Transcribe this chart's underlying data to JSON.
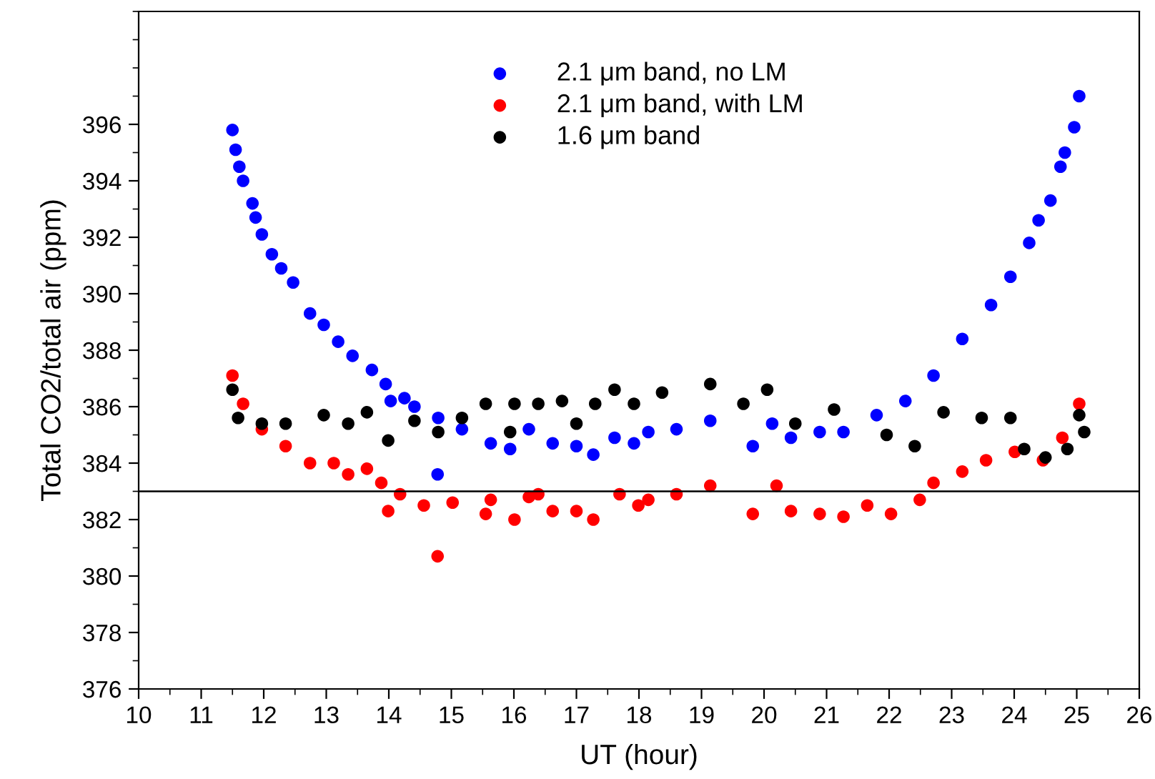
{
  "chart_data": {
    "type": "scatter",
    "xlabel": "UT (hour)",
    "ylabel": "Total CO2/total air (ppm)",
    "xlim": [
      10,
      26
    ],
    "xticks": [
      10,
      11,
      12,
      13,
      14,
      15,
      16,
      17,
      18,
      19,
      20,
      21,
      22,
      23,
      24,
      25,
      26
    ],
    "ylim": [
      376,
      400
    ],
    "yticks": [
      376,
      378,
      380,
      382,
      384,
      386,
      388,
      390,
      392,
      394,
      396
    ],
    "legend": "top",
    "marker": "circle",
    "grid": false,
    "ref_lines": [
      {
        "axis": "y",
        "value": 383,
        "color": "#000000"
      }
    ],
    "series": [
      {
        "name": "2.1 μm band, no LM",
        "color": "#0000ff",
        "x": [
          11.5,
          11.55,
          11.61,
          11.67,
          11.82,
          11.87,
          11.97,
          12.13,
          12.28,
          12.47,
          12.74,
          12.96,
          13.19,
          13.42,
          13.73,
          13.95,
          14.03,
          14.25,
          14.41,
          14.79,
          14.78,
          15.17,
          15.63,
          15.94,
          16.24,
          16.62,
          17.0,
          17.27,
          17.61,
          17.92,
          18.15,
          18.6,
          19.14,
          19.82,
          20.13,
          20.43,
          20.89,
          21.27,
          21.8,
          22.26,
          22.71,
          23.17,
          23.63,
          23.94,
          24.24,
          24.39,
          24.58,
          24.74,
          24.81,
          24.96,
          25.04
        ],
        "values": [
          395.8,
          395.1,
          394.5,
          394.0,
          393.2,
          392.7,
          392.1,
          391.4,
          390.9,
          390.4,
          389.3,
          388.9,
          388.3,
          387.8,
          387.3,
          386.8,
          386.2,
          386.3,
          386.0,
          385.6,
          383.6,
          385.2,
          384.7,
          384.5,
          385.2,
          384.7,
          384.6,
          384.3,
          384.9,
          384.7,
          385.1,
          385.2,
          385.5,
          384.6,
          385.4,
          384.9,
          385.1,
          385.1,
          385.7,
          386.2,
          387.1,
          388.4,
          389.6,
          390.6,
          391.8,
          392.6,
          393.3,
          394.5,
          395.0,
          395.9,
          397.0
        ]
      },
      {
        "name": "2.1 μm band, with LM",
        "color": "#ff0000",
        "x": [
          11.5,
          11.67,
          11.97,
          12.35,
          12.74,
          13.12,
          13.35,
          13.65,
          13.88,
          13.99,
          14.18,
          14.56,
          14.78,
          15.02,
          15.55,
          15.63,
          16.01,
          16.24,
          16.39,
          16.62,
          17.0,
          17.27,
          17.69,
          17.99,
          18.15,
          18.6,
          19.14,
          19.82,
          20.2,
          20.43,
          20.89,
          21.27,
          21.65,
          22.03,
          22.49,
          22.71,
          23.17,
          23.55,
          24.01,
          24.46,
          24.77,
          25.04
        ],
        "values": [
          387.1,
          386.1,
          385.2,
          384.6,
          384.0,
          384.0,
          383.6,
          383.8,
          383.3,
          382.3,
          382.9,
          382.5,
          380.7,
          382.6,
          382.2,
          382.7,
          382.0,
          382.8,
          382.9,
          382.3,
          382.3,
          382.0,
          382.9,
          382.5,
          382.7,
          382.9,
          383.2,
          382.2,
          383.2,
          382.3,
          382.2,
          382.1,
          382.5,
          382.2,
          382.7,
          383.3,
          383.7,
          384.1,
          384.4,
          384.1,
          384.9,
          386.1
        ]
      },
      {
        "name": "1.6 μm band",
        "color": "#000000",
        "x": [
          11.5,
          11.59,
          11.97,
          12.35,
          12.96,
          13.35,
          13.65,
          13.99,
          14.41,
          14.79,
          15.17,
          15.55,
          15.94,
          16.01,
          16.39,
          16.77,
          17.0,
          17.3,
          17.61,
          17.92,
          18.37,
          19.14,
          19.67,
          20.05,
          20.5,
          21.12,
          21.96,
          22.41,
          22.87,
          23.48,
          23.94,
          24.16,
          24.5,
          24.85,
          25.04,
          25.12
        ],
        "values": [
          386.6,
          385.6,
          385.4,
          385.4,
          385.7,
          385.4,
          385.8,
          384.8,
          385.5,
          385.1,
          385.6,
          386.1,
          385.1,
          386.1,
          386.1,
          386.2,
          385.4,
          386.1,
          386.6,
          386.1,
          386.5,
          386.8,
          386.1,
          386.6,
          385.4,
          385.9,
          385.0,
          384.6,
          385.8,
          385.6,
          385.6,
          384.5,
          384.2,
          384.5,
          385.7,
          385.1
        ]
      }
    ]
  }
}
